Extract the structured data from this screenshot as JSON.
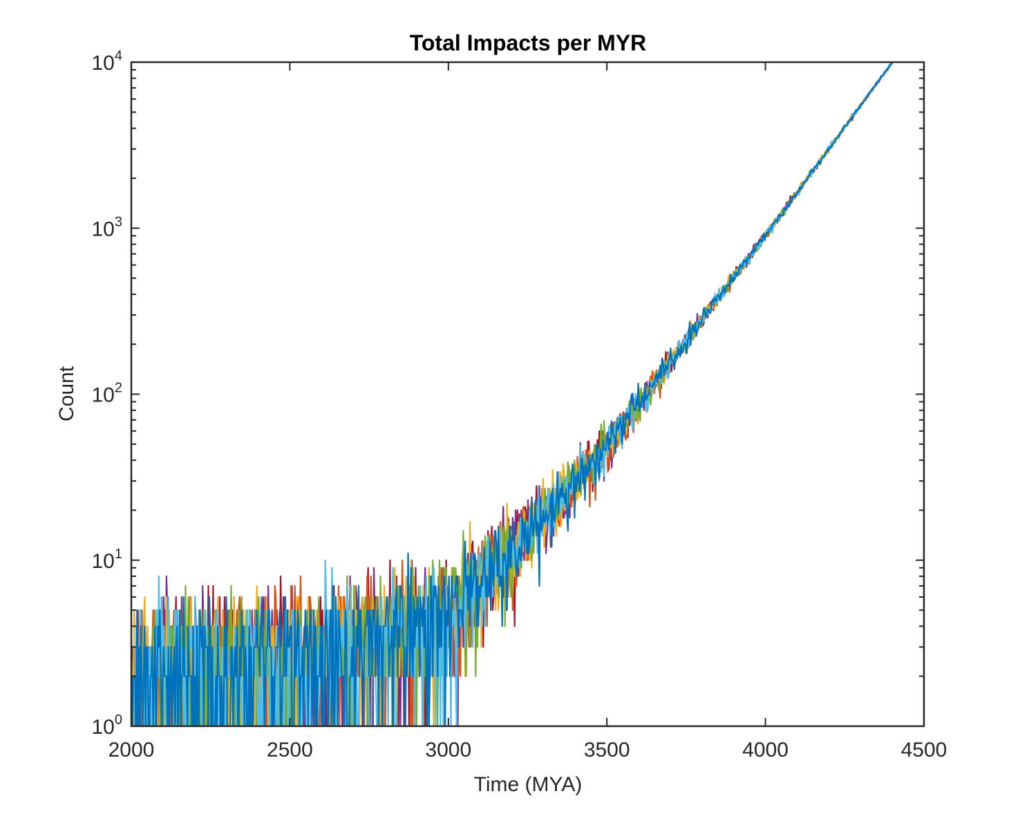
{
  "chart_data": {
    "type": "line",
    "title": "Total Impacts per MYR",
    "xlabel": "Time (MYA)",
    "ylabel": "Count",
    "xlim": [
      2000,
      4500
    ],
    "ylim": [
      1,
      10000
    ],
    "yscale": "log",
    "grid": false,
    "legend": "none",
    "xticks": [
      {
        "value": 2000,
        "label": "2000"
      },
      {
        "value": 2500,
        "label": "2500"
      },
      {
        "value": 3000,
        "label": "3000"
      },
      {
        "value": 3500,
        "label": "3500"
      },
      {
        "value": 4000,
        "label": "4000"
      },
      {
        "value": 4500,
        "label": "4500"
      }
    ],
    "yticks": [
      {
        "value": 1,
        "base": "10",
        "exponent": "0"
      },
      {
        "value": 10,
        "base": "10",
        "exponent": "1"
      },
      {
        "value": 100,
        "base": "10",
        "exponent": "2"
      },
      {
        "value": 1000,
        "base": "10",
        "exponent": "3"
      },
      {
        "value": 10000,
        "base": "10",
        "exponent": "4"
      }
    ],
    "series": [
      {
        "color": "#a2142f",
        "seed": 11
      },
      {
        "color": "#7e2f8e",
        "seed": 23
      },
      {
        "color": "#d95319",
        "seed": 37
      },
      {
        "color": "#edb120",
        "seed": 41
      },
      {
        "color": "#77ac30",
        "seed": 53
      },
      {
        "color": "#4dbeee",
        "seed": 67
      },
      {
        "color": "#0072bd",
        "seed": 79
      }
    ],
    "model": {
      "note_points": [
        [
          2000,
          2.5
        ],
        [
          2600,
          2.7
        ],
        [
          3000,
          5
        ],
        [
          3200,
          12
        ],
        [
          3500,
          50
        ],
        [
          4000,
          900
        ],
        [
          4400,
          10000
        ]
      ]
    }
  }
}
